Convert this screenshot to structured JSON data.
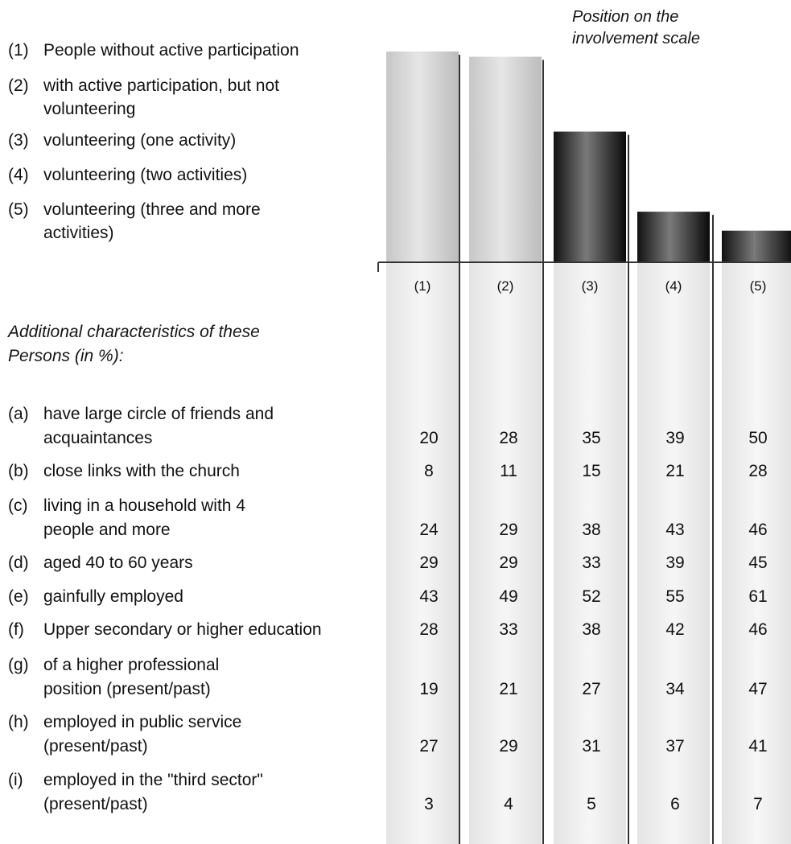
{
  "scale_title": [
    "Position on the",
    "involvement scale"
  ],
  "legend": [
    {
      "num": "(1)",
      "lines": [
        "People without active participation"
      ]
    },
    {
      "num": "(2)",
      "lines": [
        "with active participation, but not",
        "volunteering"
      ]
    },
    {
      "num": "(3)",
      "lines": [
        "volunteering (one activity)"
      ]
    },
    {
      "num": "(4)",
      "lines": [
        "volunteering (two activities)"
      ]
    },
    {
      "num": "(5)",
      "lines": [
        "volunteering (three and more",
        "activities)"
      ]
    }
  ],
  "section_heading": [
    "Additional characteristics of these",
    "Persons (in %):"
  ],
  "chart_data": {
    "type": "bar",
    "categories": [
      "(1)",
      "(2)",
      "(3)",
      "(4)",
      "(5)"
    ],
    "bar_relative_heights": [
      1.0,
      0.975,
      0.62,
      0.24,
      0.15
    ]
  },
  "table": {
    "columns": [
      "(1)",
      "(2)",
      "(3)",
      "(4)",
      "(5)"
    ],
    "rows": [
      {
        "key": "(a)",
        "lines": [
          "have large circle of friends and",
          "acquaintances"
        ],
        "values": [
          "20",
          "28",
          "35",
          "39",
          "50"
        ]
      },
      {
        "key": "(b)",
        "lines": [
          "close links with the church"
        ],
        "values": [
          "8",
          "11",
          "15",
          "21",
          "28"
        ]
      },
      {
        "key": "(c)",
        "lines": [
          "living in a household with 4",
          "people and more"
        ],
        "values": [
          "24",
          "29",
          "38",
          "43",
          "46"
        ]
      },
      {
        "key": "(d)",
        "lines": [
          "aged 40 to 60 years"
        ],
        "values": [
          "29",
          "29",
          "33",
          "39",
          "45"
        ]
      },
      {
        "key": "(e)",
        "lines": [
          "gainfully employed"
        ],
        "values": [
          "43",
          "49",
          "52",
          "55",
          "61"
        ]
      },
      {
        "key": "(f)",
        "lines": [
          "Upper secondary or higher education"
        ],
        "values": [
          "28",
          "33",
          "38",
          "42",
          "46"
        ]
      },
      {
        "key": "(g)",
        "lines": [
          "of a higher professional",
          "position (present/past)"
        ],
        "values": [
          "19",
          "21",
          "27",
          "34",
          "47"
        ]
      },
      {
        "key": "(h)",
        "lines": [
          "employed in public service",
          "(present/past)"
        ],
        "values": [
          "27",
          "29",
          "31",
          "37",
          "41"
        ]
      },
      {
        "key": "(i)",
        "lines": [
          "employed in the \"third sector\"",
          "(present/past)"
        ],
        "values": [
          "3",
          "4",
          "5",
          "6",
          "7"
        ]
      }
    ]
  },
  "colors": {
    "bar_light": "#d4d4d4",
    "bar_dark": "#2a2a2a",
    "column_bg": "#ededed",
    "rule": "#333333"
  }
}
